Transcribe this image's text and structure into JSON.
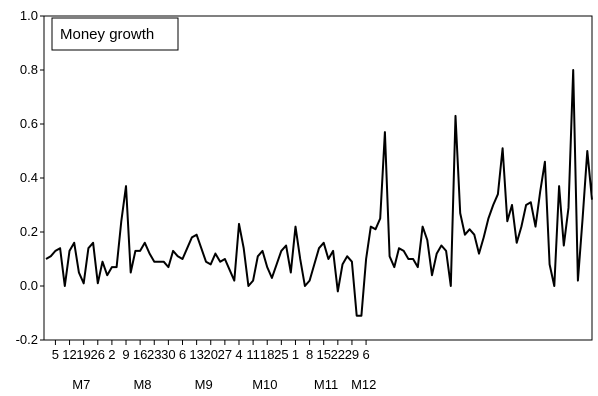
{
  "chart_data": {
    "type": "line",
    "ylim": [
      -0.2,
      1.0
    ],
    "y_ticks": [
      "1.0",
      "0.8",
      "0.6",
      "0.4",
      "0.2",
      "0.0",
      "-0.2"
    ],
    "y_tick_values": [
      1.0,
      0.8,
      0.6,
      0.4,
      0.2,
      0.0,
      -0.2
    ],
    "x_day_labels": [
      "5",
      "12",
      "19",
      "26",
      "2",
      "9",
      "16",
      "23",
      "30",
      "6",
      "13",
      "20",
      "27",
      "4",
      "11",
      "18",
      "25",
      "1",
      "8",
      "15",
      "22",
      "29",
      "6"
    ],
    "x_day_label_index": [
      2,
      5,
      8,
      11,
      14,
      17,
      20,
      23,
      26,
      29,
      32,
      35,
      38,
      41,
      44,
      47,
      50,
      53,
      56,
      59,
      62,
      65,
      68
    ],
    "x_month_labels": [
      "M7",
      "M8",
      "M9",
      "M10",
      "M11",
      "M12"
    ],
    "x_month_label_index": [
      7.5,
      20.5,
      33.5,
      46.5,
      59.5,
      67.5
    ],
    "legend": "Money growth",
    "legend_placement": "top-left",
    "grid": false,
    "series": [
      {
        "name": "Money growth",
        "color": "#000000",
        "values": [
          0.1,
          0.11,
          0.13,
          0.14,
          0.0,
          0.13,
          0.16,
          0.05,
          0.01,
          0.14,
          0.16,
          0.01,
          0.09,
          0.04,
          0.07,
          0.07,
          0.24,
          0.37,
          0.05,
          0.13,
          0.13,
          0.16,
          0.12,
          0.09,
          0.09,
          0.09,
          0.07,
          0.13,
          0.11,
          0.1,
          0.14,
          0.18,
          0.19,
          0.14,
          0.09,
          0.08,
          0.12,
          0.09,
          0.1,
          0.06,
          0.02,
          0.23,
          0.14,
          0.0,
          0.02,
          0.11,
          0.13,
          0.07,
          0.03,
          0.08,
          0.13,
          0.15,
          0.05,
          0.22,
          0.1,
          0.0,
          0.02,
          0.08,
          0.14,
          0.16,
          0.1,
          0.13,
          -0.02,
          0.08,
          0.11,
          0.09,
          -0.11,
          -0.11,
          0.1,
          0.22,
          0.21,
          0.25,
          0.57,
          0.11,
          0.07,
          0.14,
          0.13,
          0.1,
          0.1,
          0.07,
          0.22,
          0.17,
          0.04,
          0.12,
          0.15,
          0.13,
          0.0,
          0.63,
          0.27,
          0.19,
          0.21,
          0.19,
          0.12,
          0.18,
          0.25,
          0.3,
          0.34,
          0.51,
          0.24,
          0.3,
          0.16,
          0.22,
          0.3,
          0.31,
          0.22,
          0.35,
          0.46,
          0.08,
          0.0,
          0.37,
          0.15,
          0.29,
          0.8,
          0.02,
          0.25,
          0.5,
          0.32
        ]
      }
    ]
  }
}
